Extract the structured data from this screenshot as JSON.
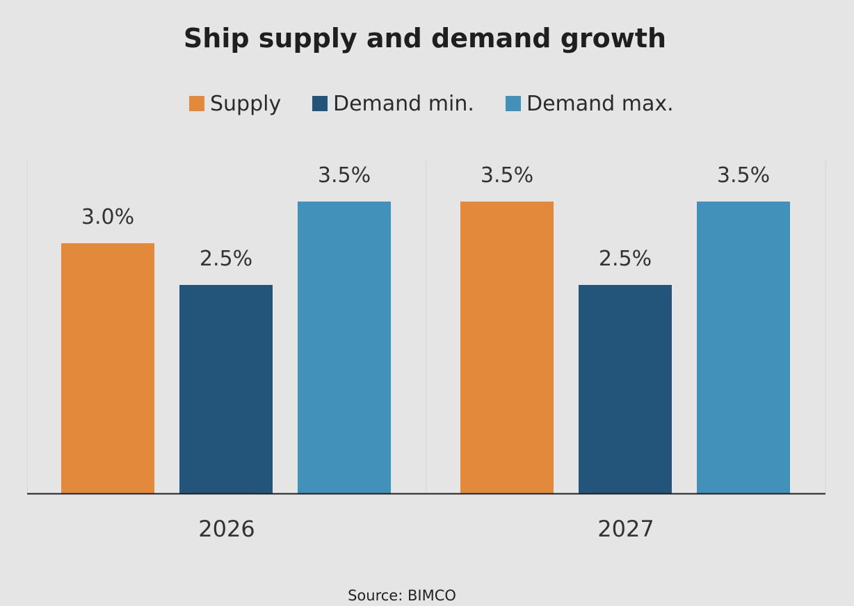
{
  "chart_data": {
    "type": "bar",
    "title": "Ship supply and demand growth",
    "categories": [
      "2026",
      "2027"
    ],
    "series": [
      {
        "name": "Supply",
        "color": "#e3893c",
        "values": [
          3.0,
          3.5
        ],
        "labels": [
          "3.0%",
          "3.5%"
        ]
      },
      {
        "name": "Demand min.",
        "color": "#235479",
        "values": [
          2.5,
          2.5
        ],
        "labels": [
          "2.5%",
          "2.5%"
        ]
      },
      {
        "name": "Demand max.",
        "color": "#4191bb",
        "values": [
          3.5,
          3.5
        ],
        "labels": [
          "3.5%",
          "3.5%"
        ]
      }
    ],
    "ylim": [
      0,
      4
    ],
    "xlabel": "",
    "ylabel": "",
    "grid": false,
    "legend_position": "top-center",
    "source": "Source: BIMCO"
  }
}
